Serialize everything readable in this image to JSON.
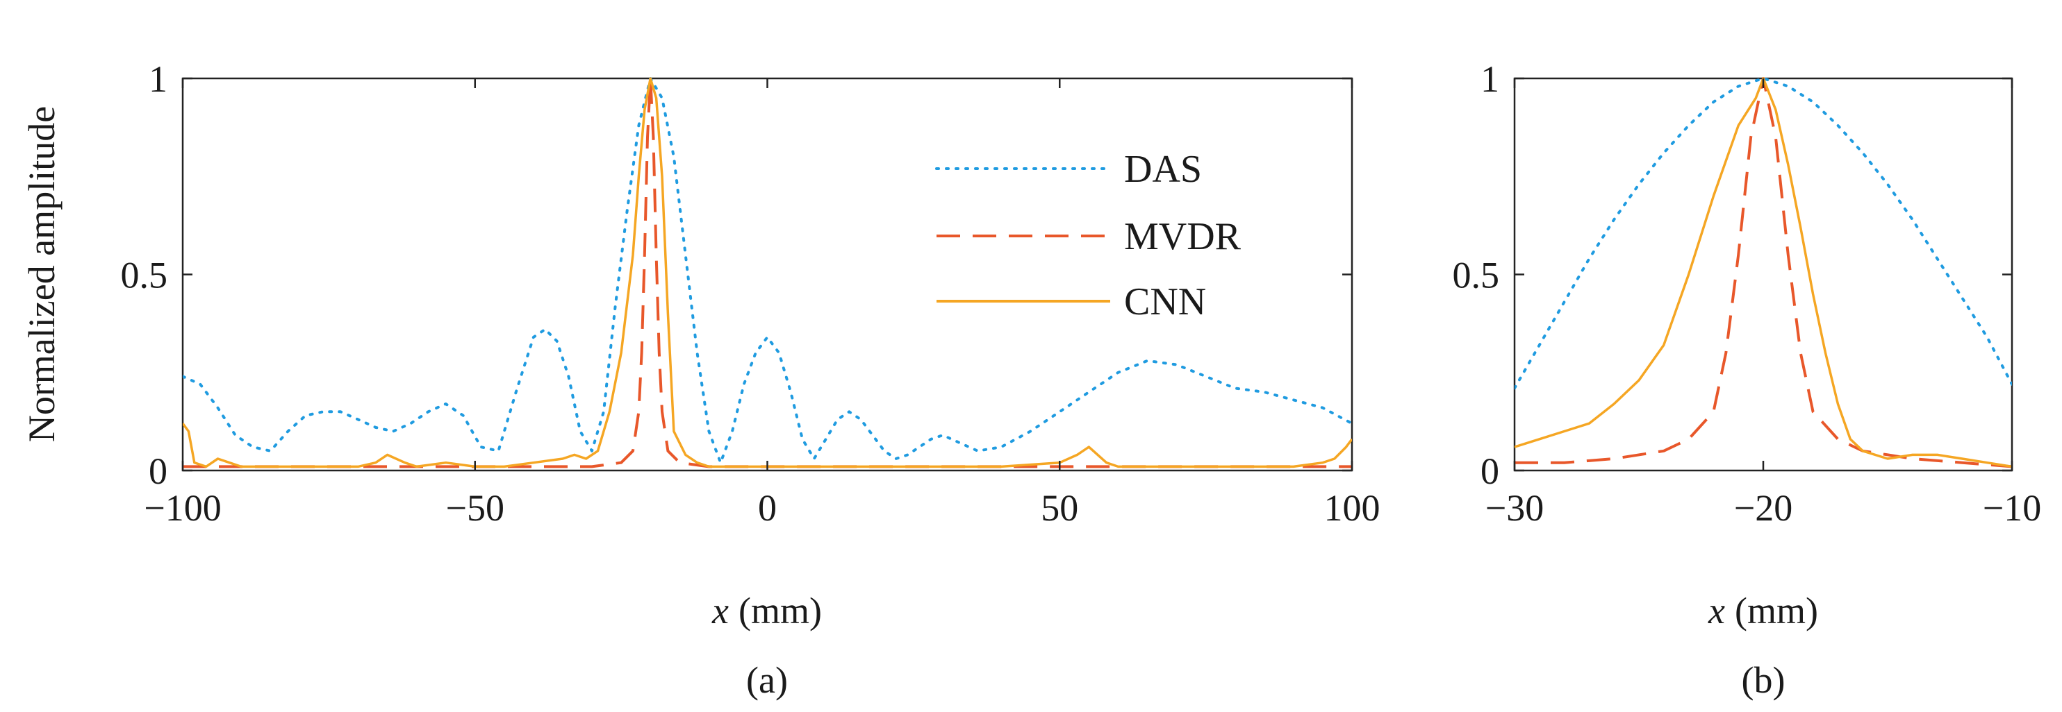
{
  "chart_data": [
    {
      "id": "a",
      "type": "line",
      "caption": "(a)",
      "title": "",
      "xlabel_var": "x",
      "xlabel_unit": "(mm)",
      "ylabel": "Normalized amplitude",
      "xlim": [
        -100,
        100
      ],
      "ylim": [
        0,
        1
      ],
      "xticks": [
        -100,
        -50,
        0,
        50,
        100
      ],
      "xtick_labels": [
        "−100",
        "−50",
        "0",
        "50",
        "100"
      ],
      "yticks": [
        0,
        0.5,
        1
      ],
      "ytick_labels": [
        "0",
        "0.5",
        "1"
      ],
      "grid": false,
      "legend": {
        "position": "top-right",
        "entries": [
          "DAS",
          "MVDR",
          "CNN"
        ]
      },
      "series": [
        {
          "name": "DAS",
          "color": "#1f9be0",
          "style": "dotted",
          "x": [
            -100,
            -97,
            -94,
            -91,
            -88,
            -85,
            -82,
            -79,
            -76,
            -73,
            -70,
            -67,
            -64,
            -61,
            -58,
            -55,
            -52,
            -49,
            -46,
            -43,
            -40,
            -38,
            -36,
            -34,
            -32,
            -30,
            -28,
            -26,
            -24,
            -22,
            -20,
            -18,
            -16,
            -14,
            -12,
            -10,
            -8,
            -6,
            -4,
            -2,
            0,
            2,
            4,
            6,
            8,
            10,
            12,
            14,
            16,
            18,
            20,
            22,
            24,
            26,
            28,
            30,
            33,
            36,
            40,
            45,
            50,
            55,
            60,
            65,
            70,
            75,
            80,
            85,
            90,
            95,
            100
          ],
          "y": [
            0.24,
            0.22,
            0.16,
            0.09,
            0.06,
            0.05,
            0.1,
            0.14,
            0.15,
            0.15,
            0.13,
            0.11,
            0.1,
            0.12,
            0.15,
            0.17,
            0.14,
            0.06,
            0.05,
            0.2,
            0.34,
            0.36,
            0.33,
            0.24,
            0.1,
            0.05,
            0.15,
            0.42,
            0.66,
            0.88,
            1.0,
            0.95,
            0.8,
            0.55,
            0.3,
            0.1,
            0.02,
            0.1,
            0.22,
            0.3,
            0.34,
            0.3,
            0.2,
            0.08,
            0.03,
            0.08,
            0.13,
            0.15,
            0.13,
            0.09,
            0.05,
            0.03,
            0.04,
            0.06,
            0.08,
            0.09,
            0.07,
            0.05,
            0.06,
            0.1,
            0.15,
            0.2,
            0.25,
            0.28,
            0.27,
            0.24,
            0.21,
            0.2,
            0.18,
            0.16,
            0.12
          ]
        },
        {
          "name": "MVDR",
          "color": "#e8572a",
          "style": "dashed",
          "x": [
            -100,
            -80,
            -60,
            -40,
            -30,
            -25,
            -23,
            -22,
            -21.5,
            -21,
            -20.5,
            -20,
            -19.5,
            -19,
            -18.5,
            -18,
            -17,
            -15,
            -10,
            0,
            20,
            40,
            60,
            80,
            100
          ],
          "y": [
            0.01,
            0.01,
            0.01,
            0.01,
            0.01,
            0.02,
            0.05,
            0.15,
            0.3,
            0.55,
            0.85,
            1.0,
            0.85,
            0.55,
            0.3,
            0.15,
            0.05,
            0.02,
            0.01,
            0.01,
            0.01,
            0.01,
            0.01,
            0.01,
            0.01
          ]
        },
        {
          "name": "CNN",
          "color": "#f5a623",
          "style": "solid",
          "x": [
            -100,
            -99,
            -98,
            -96,
            -94,
            -92,
            -90,
            -85,
            -80,
            -75,
            -70,
            -67,
            -65,
            -62,
            -60,
            -55,
            -50,
            -45,
            -40,
            -35,
            -33,
            -31,
            -29,
            -27,
            -25,
            -23,
            -22,
            -21,
            -20,
            -19,
            -18,
            -17,
            -16,
            -14,
            -12,
            -10,
            -5,
            0,
            10,
            20,
            30,
            40,
            50,
            53,
            55,
            58,
            60,
            70,
            80,
            90,
            95,
            97,
            99,
            100
          ],
          "y": [
            0.12,
            0.1,
            0.02,
            0.01,
            0.03,
            0.02,
            0.01,
            0.01,
            0.01,
            0.01,
            0.01,
            0.02,
            0.04,
            0.02,
            0.01,
            0.02,
            0.01,
            0.01,
            0.02,
            0.03,
            0.04,
            0.03,
            0.05,
            0.15,
            0.3,
            0.55,
            0.75,
            0.92,
            1.0,
            0.95,
            0.75,
            0.4,
            0.1,
            0.04,
            0.02,
            0.01,
            0.01,
            0.01,
            0.01,
            0.01,
            0.01,
            0.01,
            0.02,
            0.04,
            0.06,
            0.02,
            0.01,
            0.01,
            0.01,
            0.01,
            0.02,
            0.03,
            0.06,
            0.08
          ]
        }
      ]
    },
    {
      "id": "b",
      "type": "line",
      "caption": "(b)",
      "title": "",
      "xlabel_var": "x",
      "xlabel_unit": "(mm)",
      "ylabel": "",
      "xlim": [
        -30,
        -10
      ],
      "ylim": [
        0,
        1
      ],
      "xticks": [
        -30,
        -20,
        -10
      ],
      "xtick_labels": [
        "−30",
        "−20",
        "−10"
      ],
      "yticks": [
        0,
        0.5,
        1
      ],
      "ytick_labels": [
        "0",
        "0.5",
        "1"
      ],
      "grid": false,
      "series": [
        {
          "name": "DAS",
          "color": "#1f9be0",
          "style": "dotted",
          "x": [
            -30,
            -29,
            -28,
            -27,
            -26,
            -25,
            -24,
            -23,
            -22,
            -21,
            -20,
            -19,
            -18,
            -17,
            -16,
            -15,
            -14,
            -13,
            -12,
            -11,
            -10
          ],
          "y": [
            0.21,
            0.32,
            0.43,
            0.54,
            0.64,
            0.73,
            0.81,
            0.88,
            0.94,
            0.98,
            1.0,
            0.98,
            0.94,
            0.88,
            0.81,
            0.73,
            0.64,
            0.54,
            0.44,
            0.34,
            0.22
          ]
        },
        {
          "name": "MVDR",
          "color": "#e8572a",
          "style": "dashed",
          "x": [
            -30,
            -28,
            -26,
            -24,
            -23,
            -22,
            -21.5,
            -21,
            -20.5,
            -20,
            -19.5,
            -19,
            -18.5,
            -18,
            -17,
            -16,
            -15,
            -14,
            -12,
            -10
          ],
          "y": [
            0.02,
            0.02,
            0.03,
            0.05,
            0.08,
            0.15,
            0.3,
            0.55,
            0.85,
            1.0,
            0.85,
            0.55,
            0.3,
            0.15,
            0.08,
            0.05,
            0.04,
            0.03,
            0.02,
            0.01
          ]
        },
        {
          "name": "CNN",
          "color": "#f5a623",
          "style": "solid",
          "x": [
            -30,
            -29,
            -28,
            -27,
            -26,
            -25,
            -24,
            -23,
            -22,
            -21,
            -20.3,
            -20,
            -19.5,
            -19,
            -18.5,
            -18,
            -17.5,
            -17,
            -16.5,
            -16,
            -15,
            -14,
            -13,
            -12,
            -11,
            -10
          ],
          "y": [
            0.06,
            0.08,
            0.1,
            0.12,
            0.17,
            0.23,
            0.32,
            0.5,
            0.7,
            0.88,
            0.95,
            1.0,
            0.92,
            0.78,
            0.62,
            0.45,
            0.3,
            0.17,
            0.08,
            0.05,
            0.03,
            0.04,
            0.04,
            0.03,
            0.02,
            0.01
          ]
        }
      ]
    }
  ]
}
